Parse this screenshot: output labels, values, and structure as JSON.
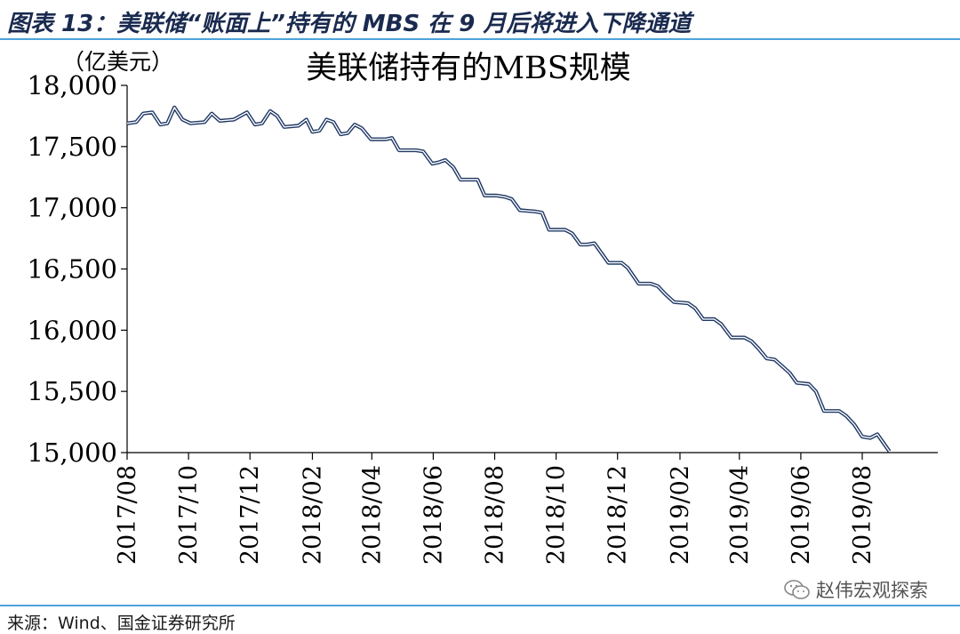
{
  "header": {
    "title": "图表 13：美联储“账面上”持有的 MBS 在 9 月后将进入下降通道"
  },
  "footer": {
    "source": "来源：Wind、国金证券研究所",
    "watermark_label": "赵伟宏观探索",
    "watermark_icon": "wechat-icon"
  },
  "chart_data": {
    "type": "line",
    "title": "美联储持有的MBS规模",
    "ylabel": "（亿美元）",
    "xlabel": "",
    "ylim": [
      15000,
      18000
    ],
    "yticks": [
      15000,
      15500,
      16000,
      16500,
      17000,
      17500,
      18000
    ],
    "ytick_labels": [
      "15,000",
      "15,500",
      "16,000",
      "16,500",
      "17,000",
      "17,500",
      "18,000"
    ],
    "xlim": [
      "2017-08-01",
      "2019-10-15"
    ],
    "xticks": [
      "2017-08-01",
      "2017-10-01",
      "2017-12-01",
      "2018-02-01",
      "2018-04-01",
      "2018-06-01",
      "2018-08-01",
      "2018-10-01",
      "2018-12-01",
      "2019-02-01",
      "2019-04-01",
      "2019-06-01",
      "2019-08-01"
    ],
    "xtick_labels": [
      "2017/08",
      "2017/10",
      "2017/12",
      "2018/02",
      "2018/04",
      "2018/06",
      "2018/08",
      "2018/10",
      "2018/12",
      "2019/02",
      "2019/04",
      "2019/06",
      "2019/08"
    ],
    "grid": false,
    "line_color": "#1f3864",
    "series": [
      {
        "name": "",
        "points": [
          [
            "2017-08-01",
            17690
          ],
          [
            "2017-08-10",
            17700
          ],
          [
            "2017-08-17",
            17770
          ],
          [
            "2017-08-26",
            17780
          ],
          [
            "2017-09-03",
            17680
          ],
          [
            "2017-09-10",
            17690
          ],
          [
            "2017-09-17",
            17820
          ],
          [
            "2017-09-25",
            17720
          ],
          [
            "2017-10-03",
            17690
          ],
          [
            "2017-10-17",
            17700
          ],
          [
            "2017-10-24",
            17770
          ],
          [
            "2017-11-01",
            17710
          ],
          [
            "2017-11-15",
            17720
          ],
          [
            "2017-11-28",
            17780
          ],
          [
            "2017-12-06",
            17680
          ],
          [
            "2017-12-13",
            17690
          ],
          [
            "2017-12-21",
            17790
          ],
          [
            "2017-12-28",
            17750
          ],
          [
            "2018-01-04",
            17660
          ],
          [
            "2018-01-18",
            17670
          ],
          [
            "2018-01-26",
            17720
          ],
          [
            "2018-02-01",
            17620
          ],
          [
            "2018-02-08",
            17630
          ],
          [
            "2018-02-15",
            17720
          ],
          [
            "2018-02-22",
            17700
          ],
          [
            "2018-03-01",
            17600
          ],
          [
            "2018-03-08",
            17610
          ],
          [
            "2018-03-15",
            17680
          ],
          [
            "2018-03-22",
            17650
          ],
          [
            "2018-03-31",
            17560
          ],
          [
            "2018-04-15",
            17560
          ],
          [
            "2018-04-21",
            17570
          ],
          [
            "2018-04-28",
            17470
          ],
          [
            "2018-05-15",
            17470
          ],
          [
            "2018-05-22",
            17460
          ],
          [
            "2018-05-31",
            17360
          ],
          [
            "2018-06-06",
            17370
          ],
          [
            "2018-06-13",
            17390
          ],
          [
            "2018-06-21",
            17330
          ],
          [
            "2018-06-28",
            17230
          ],
          [
            "2018-07-15",
            17230
          ],
          [
            "2018-07-22",
            17100
          ],
          [
            "2018-08-03",
            17100
          ],
          [
            "2018-08-11",
            17090
          ],
          [
            "2018-08-18",
            17070
          ],
          [
            "2018-08-26",
            16980
          ],
          [
            "2018-09-10",
            16970
          ],
          [
            "2018-09-17",
            16960
          ],
          [
            "2018-09-24",
            16820
          ],
          [
            "2018-10-10",
            16820
          ],
          [
            "2018-10-17",
            16790
          ],
          [
            "2018-10-25",
            16700
          ],
          [
            "2018-11-01",
            16700
          ],
          [
            "2018-11-08",
            16710
          ],
          [
            "2018-11-22",
            16550
          ],
          [
            "2018-12-05",
            16550
          ],
          [
            "2018-12-11",
            16510
          ],
          [
            "2018-12-22",
            16380
          ],
          [
            "2019-01-03",
            16380
          ],
          [
            "2019-01-10",
            16360
          ],
          [
            "2019-01-18",
            16290
          ],
          [
            "2019-01-26",
            16230
          ],
          [
            "2019-02-09",
            16220
          ],
          [
            "2019-02-16",
            16180
          ],
          [
            "2019-02-24",
            16090
          ],
          [
            "2019-03-07",
            16090
          ],
          [
            "2019-03-14",
            16050
          ],
          [
            "2019-03-24",
            15940
          ],
          [
            "2019-04-06",
            15940
          ],
          [
            "2019-04-13",
            15910
          ],
          [
            "2019-04-20",
            15850
          ],
          [
            "2019-04-28",
            15770
          ],
          [
            "2019-05-06",
            15760
          ],
          [
            "2019-05-13",
            15710
          ],
          [
            "2019-05-21",
            15650
          ],
          [
            "2019-05-28",
            15570
          ],
          [
            "2019-06-09",
            15560
          ],
          [
            "2019-06-16",
            15500
          ],
          [
            "2019-06-24",
            15340
          ],
          [
            "2019-07-09",
            15340
          ],
          [
            "2019-07-16",
            15300
          ],
          [
            "2019-07-24",
            15230
          ],
          [
            "2019-08-01",
            15130
          ],
          [
            "2019-08-09",
            15120
          ],
          [
            "2019-08-16",
            15150
          ],
          [
            "2019-08-28",
            15010
          ]
        ]
      }
    ]
  }
}
